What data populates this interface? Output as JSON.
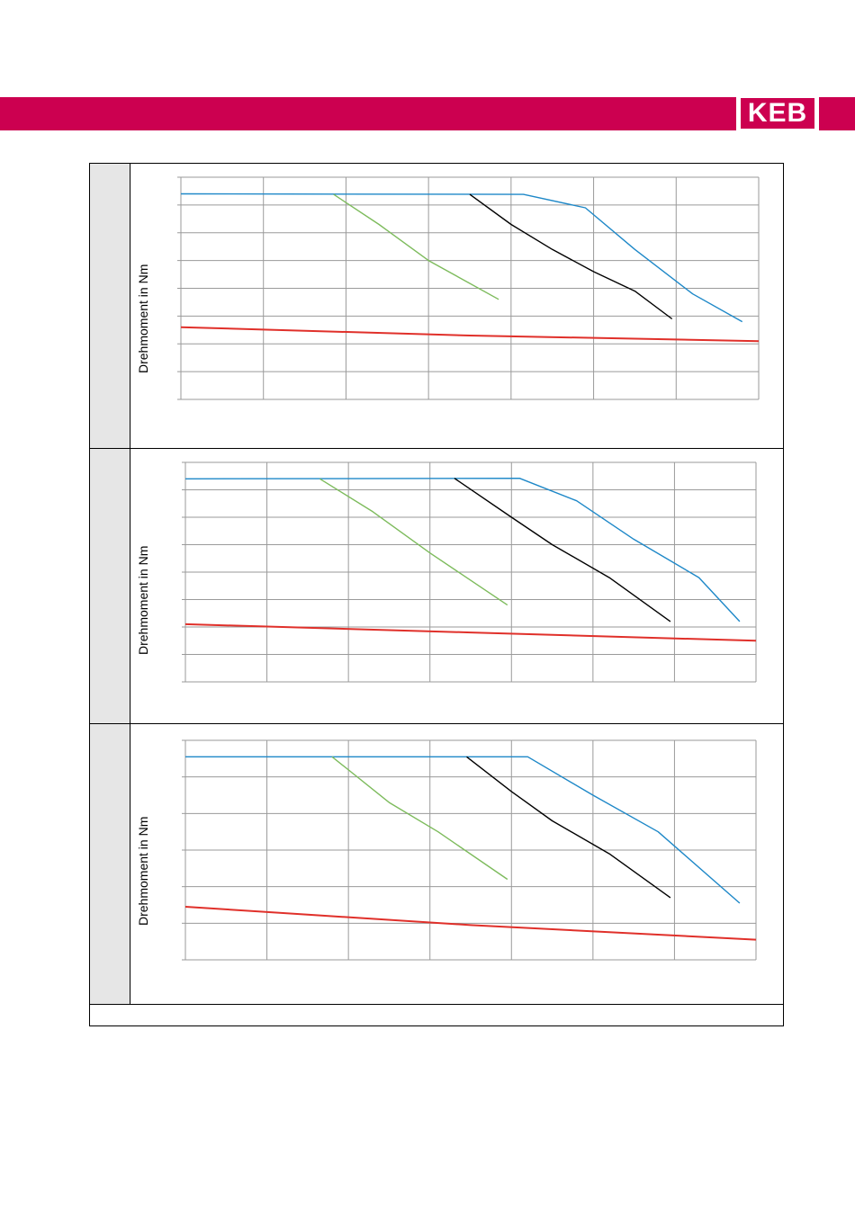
{
  "header": {
    "brand_color": "#cc0050",
    "logo_text": "KEB"
  },
  "footer": {
    "text": ""
  },
  "chart_data": [
    {
      "type": "line",
      "ylabel": "Drehmoment in Nm",
      "xlim": [
        0,
        7
      ],
      "ylim": [
        0,
        8
      ],
      "grid": true,
      "x_gridlines": 7,
      "y_gridlines": 8,
      "series": [
        {
          "color": "#1e88c8",
          "points": [
            [
              0,
              7.4
            ],
            [
              4.15,
              7.38
            ],
            [
              4.9,
              6.9
            ],
            [
              5.5,
              5.4
            ],
            [
              6.2,
              3.8
            ],
            [
              6.8,
              2.8
            ]
          ]
        },
        {
          "color": "#000000",
          "points": [
            [
              3.5,
              7.38
            ],
            [
              4.0,
              6.3
            ],
            [
              4.5,
              5.4
            ],
            [
              5.0,
              4.6
            ],
            [
              5.5,
              3.9
            ],
            [
              5.95,
              2.9
            ]
          ]
        },
        {
          "color": "#7dbb5c",
          "points": [
            [
              1.85,
              7.38
            ],
            [
              2.4,
              6.3
            ],
            [
              3.0,
              5.0
            ],
            [
              3.85,
              3.6
            ]
          ]
        },
        {
          "color": "#e0302a",
          "points": [
            [
              0,
              2.6
            ],
            [
              3.5,
              2.3
            ],
            [
              7.0,
              2.1
            ]
          ]
        }
      ]
    },
    {
      "type": "line",
      "ylabel": "Drehmoment in Nm",
      "xlim": [
        0,
        7
      ],
      "ylim": [
        0,
        8
      ],
      "grid": true,
      "x_gridlines": 7,
      "y_gridlines": 8,
      "series": [
        {
          "color": "#1e88c8",
          "points": [
            [
              0,
              7.4
            ],
            [
              4.1,
              7.42
            ],
            [
              4.8,
              6.6
            ],
            [
              5.5,
              5.2
            ],
            [
              6.3,
              3.8
            ],
            [
              6.8,
              2.2
            ]
          ]
        },
        {
          "color": "#000000",
          "points": [
            [
              3.3,
              7.42
            ],
            [
              4.0,
              6.0
            ],
            [
              4.5,
              5.0
            ],
            [
              5.2,
              3.8
            ],
            [
              5.95,
              2.2
            ]
          ]
        },
        {
          "color": "#7dbb5c",
          "points": [
            [
              1.65,
              7.4
            ],
            [
              2.3,
              6.2
            ],
            [
              3.0,
              4.7
            ],
            [
              3.95,
              2.8
            ]
          ]
        },
        {
          "color": "#e0302a",
          "points": [
            [
              0,
              2.1
            ],
            [
              3.5,
              1.8
            ],
            [
              7.0,
              1.5
            ]
          ]
        }
      ]
    },
    {
      "type": "line",
      "ylabel": "Drehmoment in Nm",
      "xlim": [
        0,
        7
      ],
      "ylim": [
        0,
        6
      ],
      "grid": true,
      "x_gridlines": 7,
      "y_gridlines": 6,
      "series": [
        {
          "color": "#1e88c8",
          "points": [
            [
              0,
              5.55
            ],
            [
              4.2,
              5.55
            ],
            [
              5.0,
              4.5
            ],
            [
              5.8,
              3.5
            ],
            [
              6.8,
              1.55
            ]
          ]
        },
        {
          "color": "#000000",
          "points": [
            [
              3.45,
              5.55
            ],
            [
              4.0,
              4.6
            ],
            [
              4.5,
              3.8
            ],
            [
              5.2,
              2.9
            ],
            [
              5.95,
              1.7
            ]
          ]
        },
        {
          "color": "#7dbb5c",
          "points": [
            [
              1.8,
              5.55
            ],
            [
              2.5,
              4.3
            ],
            [
              3.1,
              3.5
            ],
            [
              3.95,
              2.2
            ]
          ]
        },
        {
          "color": "#e0302a",
          "points": [
            [
              0,
              1.45
            ],
            [
              3.5,
              0.95
            ],
            [
              7.0,
              0.55
            ]
          ]
        }
      ]
    }
  ]
}
